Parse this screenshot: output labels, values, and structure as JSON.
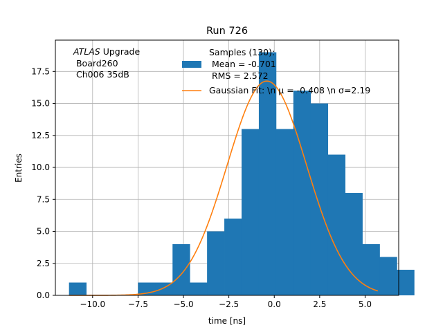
{
  "chart_data": {
    "type": "bar",
    "title": "Run 726",
    "xlabel": "time [ns]",
    "ylabel": "Entries",
    "xlim": [
      -12.05,
      6.85
    ],
    "ylim": [
      0,
      19.95
    ],
    "grid": true,
    "xticks": [
      -10.0,
      -7.5,
      -5.0,
      -2.5,
      0.0,
      2.5,
      5.0
    ],
    "xtick_labels": [
      "−10.0",
      "−7.5",
      "−5.0",
      "−2.5",
      "0.0",
      "2.5",
      "5.0"
    ],
    "yticks": [
      0.0,
      2.5,
      5.0,
      7.5,
      10.0,
      12.5,
      15.0,
      17.5
    ],
    "ytick_labels": [
      "0.0",
      "2.5",
      "5.0",
      "7.5",
      "10.0",
      "12.5",
      "15.0",
      "17.5"
    ],
    "histogram": {
      "bin_width": 0.95,
      "bins": [
        [
          -11.3,
          1
        ],
        [
          -10.35,
          0
        ],
        [
          -9.4,
          0
        ],
        [
          -8.45,
          0
        ],
        [
          -7.5,
          1
        ],
        [
          -6.55,
          1
        ],
        [
          -5.6,
          4
        ],
        [
          -4.65,
          1
        ],
        [
          -3.7,
          5
        ],
        [
          -2.75,
          6
        ],
        [
          -1.8,
          13
        ],
        [
          -0.85,
          19
        ],
        [
          0.1,
          13
        ],
        [
          1.05,
          16
        ],
        [
          2.0,
          15
        ],
        [
          2.95,
          11
        ],
        [
          3.9,
          8
        ],
        [
          4.85,
          4
        ],
        [
          5.8,
          3
        ],
        [
          6.75,
          2
        ]
      ]
    },
    "histogram_edges": [
      -11.3,
      -10.35,
      -9.4,
      -8.45,
      -7.5,
      -6.55,
      -5.6,
      -4.65,
      -3.7,
      -2.75,
      -1.8,
      -0.85,
      0.1,
      1.05,
      2.0,
      2.95,
      3.9,
      4.85,
      5.8,
      6.75
    ],
    "histogram_counts": [
      1,
      0,
      0,
      0,
      1,
      1,
      4,
      1,
      5,
      6,
      13,
      19,
      13,
      16,
      15,
      11,
      8,
      4,
      3,
      2
    ],
    "fit": {
      "mean": -0.408,
      "sigma": 2.19,
      "amplitude": 16.75,
      "x_range": [
        -11.3,
        5.7
      ]
    },
    "colors": {
      "hist": "#1f77b4",
      "fit": "#ff7f0e",
      "grid": "#b0b0b0"
    },
    "legend": {
      "entries": [
        {
          "lines": [
            "Samples (130):",
            " Mean = -0.701",
            " RMS = 2.572"
          ],
          "kind": "patch"
        },
        {
          "lines": [
            "Gaussian Fit: \\n μ = -0.408 \\n σ=2.19"
          ],
          "kind": "line"
        }
      ]
    },
    "annotation": {
      "italic": "ATLAS",
      "rest": " Upgrade",
      "lines": [
        " Board260",
        " Ch006 35dB"
      ]
    }
  }
}
